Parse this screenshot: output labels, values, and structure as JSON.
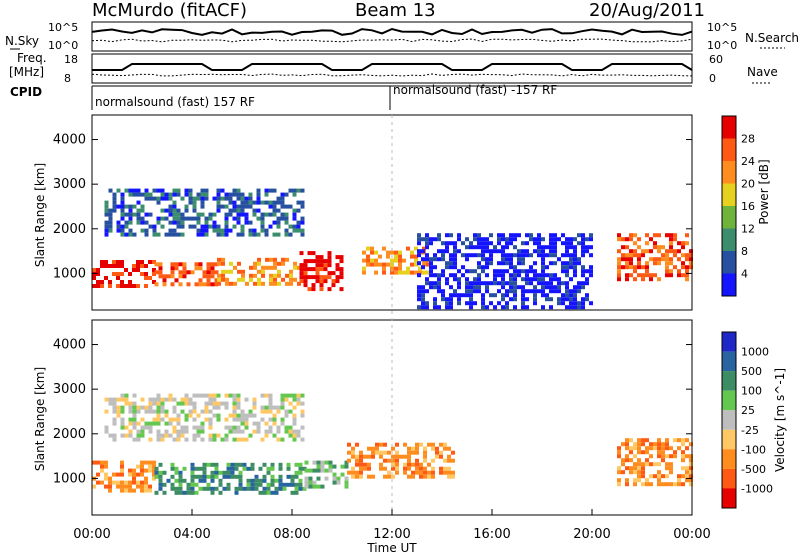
{
  "header": {
    "station": "McMurdo (fitACF)",
    "beam": "Beam 13",
    "date": "20/Aug/2011"
  },
  "top_panels": {
    "nsky_label": "N.Sky",
    "nsearch_label": "N.Search",
    "freq_label_1": "Freq.",
    "freq_label_2": "[MHz]",
    "nave_label": "Nave",
    "cpid_label": "CPID",
    "count_tick_high": "10^5",
    "count_tick_low": "10^0",
    "freq_tick_high": "18",
    "freq_tick_low": "8",
    "nave_tick_high": "60",
    "nave_tick_low": "0",
    "cpid_left": "normalsound (fast) 157 RF",
    "cpid_right": "normalsound (fast) -157 RF"
  },
  "x_axis": {
    "label": "Time UT",
    "ticks": [
      "00:00",
      "04:00",
      "08:00",
      "12:00",
      "16:00",
      "20:00",
      "00:00"
    ]
  },
  "chart_data": [
    {
      "type": "heatmap",
      "name": "power",
      "ylabel": "Slant Range [km]",
      "colorbar_label": "Power [dB]",
      "y_ticks": [
        1000,
        2000,
        3000,
        4000
      ],
      "ylim": [
        180,
        4550
      ],
      "xlim_hours": [
        0,
        24
      ],
      "color_levels": [
        4,
        8,
        12,
        16,
        20,
        24,
        28
      ],
      "colors": [
        "#1414ff",
        "#2850a0",
        "#3c8c6e",
        "#6eb43c",
        "#e6d21e",
        "#ff8c1e",
        "#ff5a14",
        "#e60000"
      ],
      "grid": false,
      "regions": [
        {
          "t_start": 0.0,
          "t_end": 2.5,
          "range_low": 700,
          "range_high": 1300,
          "level": 7
        },
        {
          "t_start": 2.5,
          "t_end": 5.0,
          "range_low": 750,
          "range_high": 1250,
          "level": 6
        },
        {
          "t_start": 5.0,
          "t_end": 8.3,
          "range_low": 800,
          "range_high": 1350,
          "level": 5
        },
        {
          "t_start": 8.3,
          "t_end": 10.0,
          "range_low": 650,
          "range_high": 1500,
          "level": 7
        },
        {
          "t_start": 10.8,
          "t_end": 13.5,
          "range_low": 1000,
          "range_high": 1600,
          "level": 5
        },
        {
          "t_start": 21.0,
          "t_end": 24.0,
          "range_low": 900,
          "range_high": 1900,
          "level": 6
        },
        {
          "t_start": 0.5,
          "t_end": 8.5,
          "range_low": 1900,
          "range_high": 2900,
          "level": 1
        },
        {
          "t_start": 13.0,
          "t_end": 20.0,
          "range_low": 250,
          "range_high": 1900,
          "level": 0
        }
      ]
    },
    {
      "type": "heatmap",
      "name": "velocity",
      "ylabel": "Slant Range [km]",
      "colorbar_label": "Velocity [m s^-1]",
      "y_ticks": [
        1000,
        2000,
        3000,
        4000
      ],
      "ylim": [
        180,
        4550
      ],
      "xlim_hours": [
        0,
        24
      ],
      "color_levels": [
        1000,
        500,
        100,
        25,
        -25,
        -100,
        -500,
        -1000
      ],
      "colors": [
        "#1e28c8",
        "#2864a0",
        "#3c8c64",
        "#64c850",
        "#bebebe",
        "#ffc864",
        "#ff8c1e",
        "#ff5a14",
        "#e60000"
      ],
      "grid": false,
      "regions": [
        {
          "t_start": 0.0,
          "t_end": 2.5,
          "range_low": 700,
          "range_high": 1400,
          "level": 6
        },
        {
          "t_start": 2.5,
          "t_end": 8.5,
          "range_low": 700,
          "range_high": 1350,
          "level": 2
        },
        {
          "t_start": 8.5,
          "t_end": 10.2,
          "range_low": 800,
          "range_high": 1400,
          "level": 3
        },
        {
          "t_start": 10.2,
          "t_end": 14.5,
          "range_low": 1000,
          "range_high": 1800,
          "level": 6
        },
        {
          "t_start": 21.0,
          "t_end": 24.0,
          "range_low": 900,
          "range_high": 1900,
          "level": 6
        },
        {
          "t_start": 0.5,
          "t_end": 8.5,
          "range_low": 1900,
          "range_high": 2900,
          "level": 4
        }
      ]
    }
  ],
  "colorbar_power_ticks": [
    "4",
    "8",
    "12",
    "16",
    "20",
    "24",
    "28"
  ],
  "colorbar_velocity_ticks": [
    "1000",
    "500",
    "100",
    "25",
    "-25",
    "-100",
    "-500",
    "-1000"
  ]
}
